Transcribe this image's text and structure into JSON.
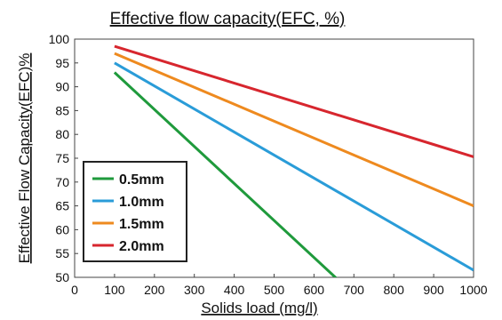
{
  "chart_data": {
    "type": "line",
    "title": "Effective flow capacity(EFC, %)",
    "xlabel": "Solids load (mg/l)",
    "ylabel": "Effective Flow Capacity(EFC)%",
    "xlim": [
      0,
      1000
    ],
    "ylim": [
      50,
      100
    ],
    "xticks": [
      0,
      100,
      200,
      300,
      400,
      500,
      600,
      700,
      800,
      900,
      1000
    ],
    "yticks": [
      50,
      55,
      60,
      65,
      70,
      75,
      80,
      85,
      90,
      95,
      100
    ],
    "grid": false,
    "legend": "bottom-left",
    "series": [
      {
        "name": "0.5mm",
        "color": "#1f9a3c",
        "x": [
          100,
          660
        ],
        "y": [
          93,
          49.5
        ]
      },
      {
        "name": "1.0mm",
        "color": "#2a9cd8",
        "x": [
          100,
          1000
        ],
        "y": [
          95,
          51.5
        ]
      },
      {
        "name": "1.5mm",
        "color": "#ee8a1f",
        "x": [
          100,
          1000
        ],
        "y": [
          97,
          65
        ]
      },
      {
        "name": "2.0mm",
        "color": "#d7262e",
        "x": [
          100,
          1000
        ],
        "y": [
          98.5,
          75.3
        ]
      }
    ]
  }
}
